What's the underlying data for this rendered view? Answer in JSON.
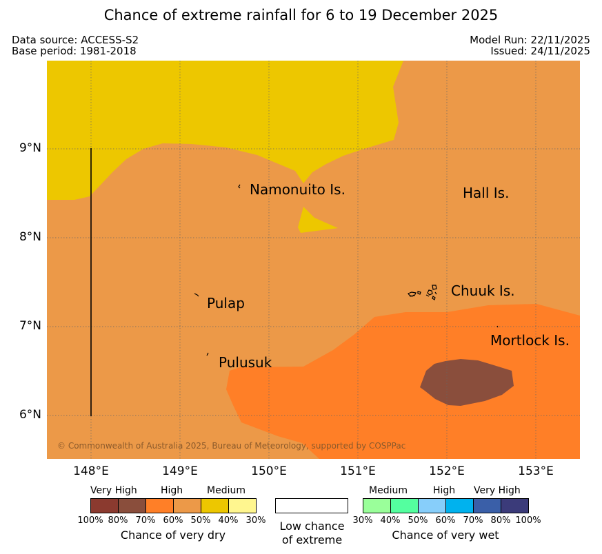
{
  "title": "Chance of extreme rainfall for 6 to 19 December 2025",
  "data_source": "Data source: ACCESS-S2",
  "base_period": "Base period: 1981-2018",
  "model_run": "Model Run: 22/11/2025",
  "issued": "Issued: 24/11/2025",
  "lat_labels": [
    "9°N",
    "8°N",
    "7°N",
    "6°N"
  ],
  "lon_labels": [
    "148°E",
    "149°E",
    "150°E",
    "151°E",
    "152°E",
    "153°E"
  ],
  "places": {
    "namonuito": "Namonuito Is.",
    "hall": "Hall Is.",
    "pulap": "Pulap",
    "chuuk": "Chuuk Is.",
    "mortlock": "Mortlock Is.",
    "pulusuk": "Pulusuk"
  },
  "copyright": "© Commonwealth of Australia 2025, Bureau of Meteorology, supported by COSPPac",
  "legend": {
    "dry": {
      "headers": [
        "Very High",
        "High",
        "Medium"
      ],
      "ticks": [
        "100%",
        "80%",
        "70%",
        "60%",
        "50%",
        "40%",
        "30%"
      ],
      "title": "Chance of very dry",
      "colors": [
        "#8b3a2f",
        "#8a4e3c",
        "#ff7f27",
        "#ec9948",
        "#edc700",
        "#fff68f"
      ]
    },
    "neutral": {
      "line1": "Low chance",
      "line2": "of extreme"
    },
    "wet": {
      "headers": [
        "Medium",
        "High",
        "Very High"
      ],
      "ticks": [
        "30%",
        "40%",
        "50%",
        "60%",
        "70%",
        "80%",
        "100%"
      ],
      "title": "Chance of very wet",
      "colors": [
        "#9aff9a",
        "#54ff9f",
        "#87cefa",
        "#00b2ee",
        "#3a5fa8",
        "#3b3b7a"
      ]
    }
  },
  "colors": {
    "background_high": "#ec9948",
    "medium": "#edc700",
    "high": "#ff7f27",
    "very_high": "#8a4e3c"
  }
}
